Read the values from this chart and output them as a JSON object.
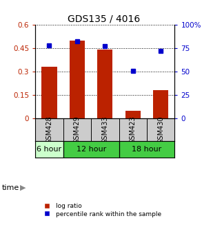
{
  "title": "GDS135 / 4016",
  "samples": [
    "GSM428",
    "GSM429",
    "GSM433",
    "GSM423",
    "GSM430"
  ],
  "log_ratio": [
    0.33,
    0.5,
    0.44,
    0.05,
    0.18
  ],
  "percentile_rank": [
    78,
    82,
    77,
    51,
    72
  ],
  "bar_color": "#bb2200",
  "marker_color": "#0000cc",
  "left_ylim": [
    0,
    0.6
  ],
  "left_yticks": [
    0,
    0.15,
    0.3,
    0.45,
    0.6
  ],
  "left_yticklabels": [
    "0",
    "0.15",
    "0.3",
    "0.45",
    "0.6"
  ],
  "right_ylim": [
    0,
    100
  ],
  "right_yticks": [
    0,
    25,
    50,
    75,
    100
  ],
  "right_yticklabels": [
    "0",
    "25",
    "50",
    "75",
    "100%"
  ],
  "time_groups": [
    {
      "label": "6 hour",
      "start": 0,
      "end": 1,
      "color": "#ccffcc"
    },
    {
      "label": "12 hour",
      "start": 1,
      "end": 3,
      "color": "#44cc44"
    },
    {
      "label": "18 hour",
      "start": 3,
      "end": 5,
      "color": "#44cc44"
    }
  ],
  "time_label": "time",
  "legend_log_ratio": "log ratio",
  "legend_percentile": "percentile rank within the sample",
  "sample_area_color": "#cccccc",
  "title_fontsize": 10,
  "axis_fontsize": 7.5,
  "sample_fontsize": 7,
  "time_fontsize": 8,
  "legend_fontsize": 6.5
}
